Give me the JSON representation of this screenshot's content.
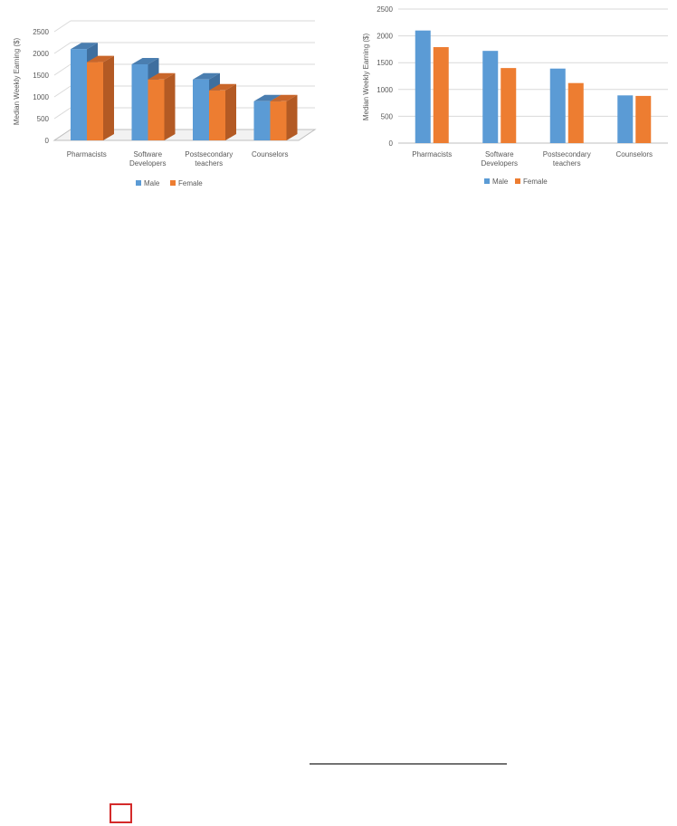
{
  "colors": {
    "male": "#5b9bd5",
    "male_top": "#4a7eb0",
    "male_side": "#3f6f9f",
    "female": "#ed7d31",
    "female_top": "#c9662a",
    "female_side": "#b35a24",
    "grid": "#d9d9d9",
    "axis": "#bfbfbf",
    "footer_box": "#d42a2a"
  },
  "chart_data": [
    {
      "type": "bar",
      "style": "3d-clustered-column",
      "title": "",
      "xlabel": "",
      "ylabel": "Median Weekly Earning ($)",
      "categories": [
        "Pharmacists",
        "Software Developers",
        "Postsecondary teachers",
        "Counselors"
      ],
      "series": [
        {
          "name": "Male",
          "values": [
            2100,
            1750,
            1400,
            900
          ]
        },
        {
          "name": "Female",
          "values": [
            1800,
            1400,
            1150,
            900
          ]
        }
      ],
      "ylim": [
        0,
        2500
      ],
      "yticks": [
        "0",
        "500",
        "1000",
        "1500",
        "2000",
        "2500"
      ],
      "grid": true,
      "legend": "bottom"
    },
    {
      "type": "bar",
      "style": "clustered-column",
      "title": "",
      "xlabel": "",
      "ylabel": "Median Weekly Earning ($)",
      "categories": [
        "Pharmacists",
        "Software Developers",
        "Postsecondary teachers",
        "Counselors"
      ],
      "series": [
        {
          "name": "Male",
          "values": [
            2100,
            1720,
            1390,
            890
          ]
        },
        {
          "name": "Female",
          "values": [
            1790,
            1400,
            1120,
            880
          ]
        }
      ],
      "ylim": [
        0,
        2500
      ],
      "yticks": [
        "0",
        "500",
        "1000",
        "1500",
        "2000",
        "2500"
      ],
      "grid": true,
      "legend": "bottom"
    }
  ]
}
